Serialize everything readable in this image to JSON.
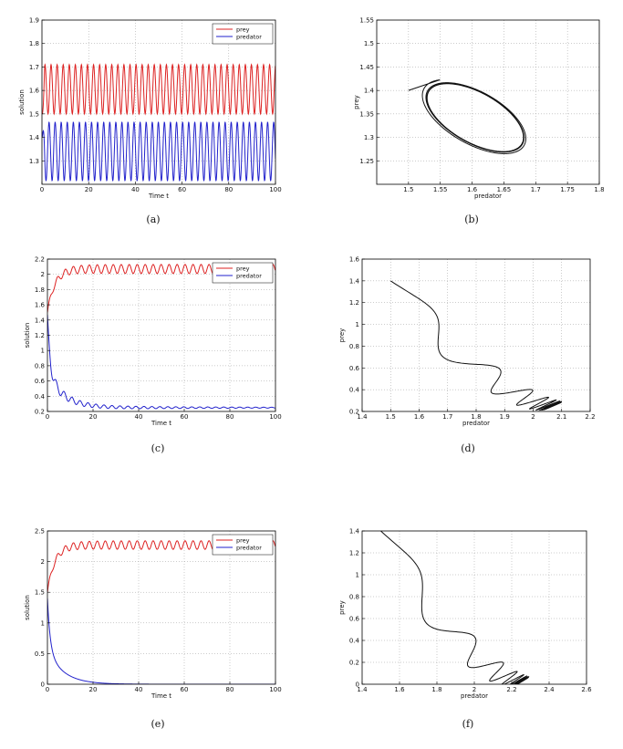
{
  "chart_data": [
    {
      "id": "a",
      "caption": "(a)",
      "type": "line",
      "xlabel": "Time t",
      "ylabel": "solution",
      "xlim": [
        0,
        100
      ],
      "ylim": [
        1.2,
        1.9
      ],
      "xticks": [
        0,
        20,
        40,
        60,
        80,
        100
      ],
      "yticks": [
        1.3,
        1.4,
        1.5,
        1.6,
        1.7,
        1.8,
        1.9
      ],
      "grid": true,
      "legend": "top-right",
      "series": [
        {
          "name": "prey",
          "color": "#dd2222",
          "kind": "oscillation",
          "mean": 1.605,
          "amplitude": 0.105,
          "period": 2.6,
          "start": 1.5
        },
        {
          "name": "predator",
          "color": "#2222cc",
          "kind": "oscillation",
          "mean": 1.34,
          "amplitude": 0.125,
          "period": 2.6,
          "start": 1.4
        }
      ]
    },
    {
      "id": "b",
      "caption": "(b)",
      "type": "line",
      "xlabel": "predator",
      "ylabel": "prey",
      "xlim": [
        1.45,
        1.8
      ],
      "ylim": [
        1.2,
        1.55
      ],
      "xticks": [
        1.5,
        1.55,
        1.6,
        1.65,
        1.7,
        1.75,
        1.8
      ],
      "yticks": [
        1.25,
        1.3,
        1.35,
        1.4,
        1.45,
        1.5,
        1.55
      ],
      "grid": true,
      "series": [
        {
          "color": "#111111",
          "kind": "spiral",
          "start": [
            1.5,
            1.4
          ],
          "center": [
            1.605,
            1.342
          ],
          "a_axis": 0.088,
          "b_axis": 0.112
        }
      ]
    },
    {
      "id": "c",
      "caption": "(c)",
      "type": "line",
      "xlabel": "Time t",
      "ylabel": "solution",
      "xlim": [
        0,
        100
      ],
      "ylim": [
        0.2,
        2.2
      ],
      "xticks": [
        0,
        20,
        40,
        60,
        80,
        100
      ],
      "yticks": [
        0.2,
        0.4,
        0.6,
        0.8,
        1,
        1.2,
        1.4,
        1.6,
        1.8,
        2,
        2.2
      ],
      "grid": true,
      "legend": "top-right",
      "series": [
        {
          "name": "prey",
          "color": "#dd2222",
          "kind": "rise",
          "start": 1.5,
          "end": 2.07,
          "amplitude": 0.06,
          "period": 3.5
        },
        {
          "name": "predator",
          "color": "#2222cc",
          "kind": "decay",
          "start": 1.4,
          "end": 0.25,
          "amplitude": 0.03,
          "period": 3.5
        }
      ]
    },
    {
      "id": "d",
      "caption": "(d)",
      "type": "line",
      "xlabel": "predator",
      "ylabel": "prey",
      "xlim": [
        1.4,
        2.2
      ],
      "ylim": [
        0.2,
        1.6
      ],
      "xticks": [
        1.4,
        1.5,
        1.6,
        1.7,
        1.8,
        1.9,
        2,
        2.1,
        2.2
      ],
      "yticks": [
        0.2,
        0.4,
        0.6,
        0.8,
        1,
        1.2,
        1.4,
        1.6
      ],
      "grid": true,
      "series": [
        {
          "color": "#111111",
          "kind": "phase",
          "start": [
            1.5,
            1.4
          ],
          "end": [
            2.07,
            0.25
          ]
        }
      ]
    },
    {
      "id": "e",
      "caption": "(e)",
      "type": "line",
      "xlabel": "Time t",
      "ylabel": "solution",
      "xlim": [
        0,
        100
      ],
      "ylim": [
        0,
        2.5
      ],
      "xticks": [
        0,
        20,
        40,
        60,
        80,
        100
      ],
      "yticks": [
        0,
        0.5,
        1,
        1.5,
        2,
        2.5
      ],
      "grid": true,
      "legend": "top-right",
      "series": [
        {
          "name": "prey",
          "color": "#dd2222",
          "kind": "rise",
          "start": 1.5,
          "end": 2.27,
          "amplitude": 0.07,
          "period": 3.5
        },
        {
          "name": "predator",
          "color": "#2222cc",
          "kind": "decay",
          "start": 1.4,
          "end": 0.0,
          "amplitude": 0.0,
          "period": 3.5
        }
      ]
    },
    {
      "id": "f",
      "caption": "(f)",
      "type": "line",
      "xlabel": "predator",
      "ylabel": "prey",
      "xlim": [
        1.4,
        2.6
      ],
      "ylim": [
        0,
        1.4
      ],
      "xticks": [
        1.4,
        1.6,
        1.8,
        2,
        2.2,
        2.4,
        2.6
      ],
      "yticks": [
        0,
        0.2,
        0.4,
        0.6,
        0.8,
        1,
        1.2,
        1.4
      ],
      "grid": true,
      "series": [
        {
          "color": "#111111",
          "kind": "phase",
          "start": [
            1.5,
            1.4
          ],
          "end": [
            2.25,
            0.02
          ]
        }
      ]
    }
  ]
}
